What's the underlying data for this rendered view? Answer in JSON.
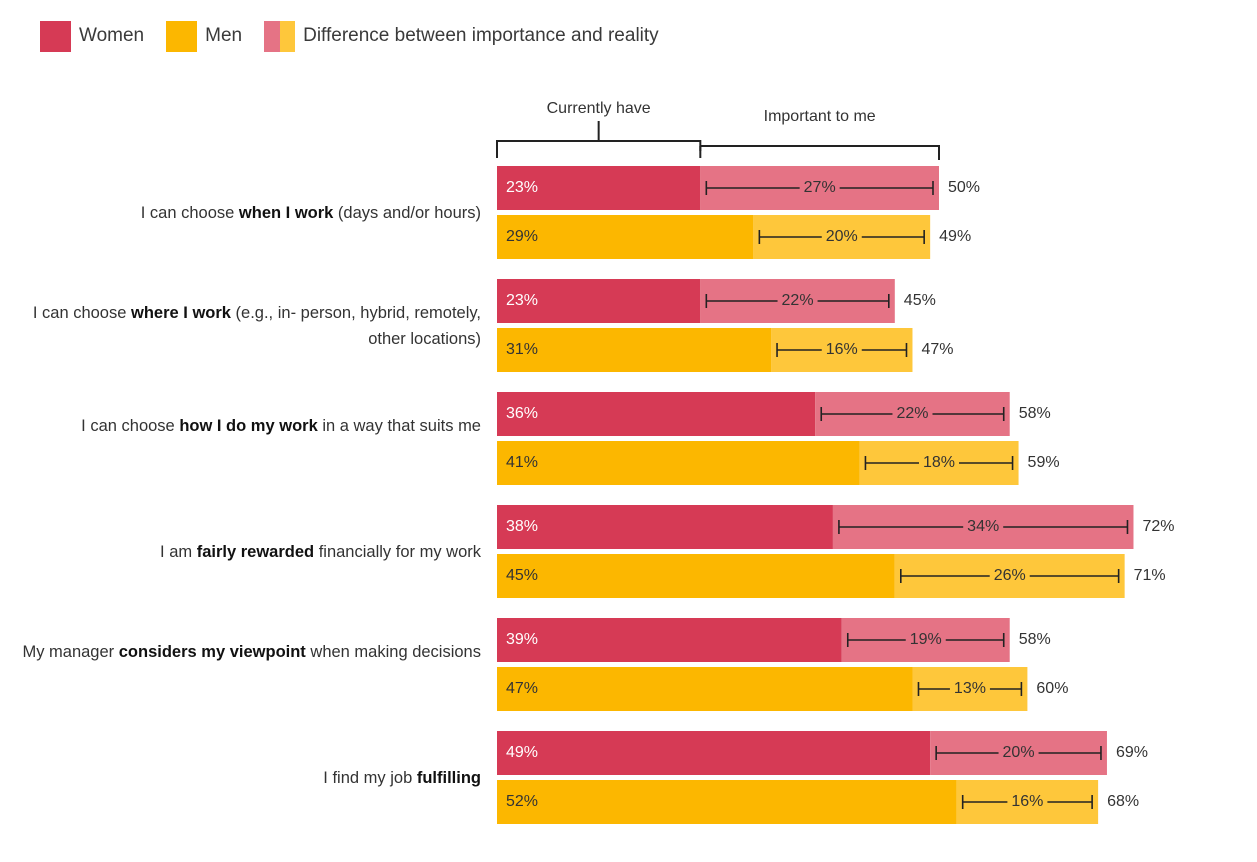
{
  "legend": {
    "women": "Women",
    "men": "Men",
    "difference": "Difference between importance and reality"
  },
  "colors": {
    "women": "#d63a55",
    "women_light": "#e57385",
    "men": "#fcb700",
    "men_light": "#fec73b",
    "whisker": "#222222",
    "text_dark": "#333333",
    "text_white": "#ffffff"
  },
  "annotations": {
    "currently_have": "Currently have",
    "important_to_me": "Important to me"
  },
  "rows": [
    {
      "pre": "I can choose ",
      "bold": "when I work",
      "post": " (days and/or hours)"
    },
    {
      "pre": "I can choose ",
      "bold": "where I work",
      "post": " (e.g., in- person, hybrid, remotely, other locations)"
    },
    {
      "pre": "I can choose ",
      "bold": "how I do my work",
      "post": " in a way that suits me"
    },
    {
      "pre": "I am ",
      "bold": "fairly rewarded",
      "post": " financially for my work"
    },
    {
      "pre": "My manager ",
      "bold": "considers my viewpoint",
      "post": " when making decisions"
    },
    {
      "pre": "I find my job ",
      "bold": "fulfilling",
      "post": ""
    }
  ],
  "chart_data": {
    "type": "bar",
    "orientation": "horizontal",
    "stacked": true,
    "categories": [
      "I can choose when I work (days and/or hours)",
      "I can choose where I work (e.g., in- person, hybrid, remotely, other locations)",
      "I can choose how I do my work in a way that suits me",
      "I am fairly rewarded financially for my work",
      "My manager considers my viewpoint when making decisions",
      "I find my job fulfilling"
    ],
    "unit": "%",
    "xlim": [
      0,
      100
    ],
    "series": [
      {
        "name": "Women",
        "currently_have": [
          23,
          23,
          36,
          38,
          39,
          49
        ],
        "difference": [
          27,
          22,
          22,
          34,
          19,
          20
        ],
        "important_to_me": [
          50,
          45,
          58,
          72,
          58,
          69
        ]
      },
      {
        "name": "Men",
        "currently_have": [
          29,
          31,
          41,
          45,
          47,
          52
        ],
        "difference": [
          20,
          16,
          18,
          26,
          13,
          16
        ],
        "important_to_me": [
          49,
          47,
          59,
          71,
          60,
          68
        ]
      }
    ]
  }
}
